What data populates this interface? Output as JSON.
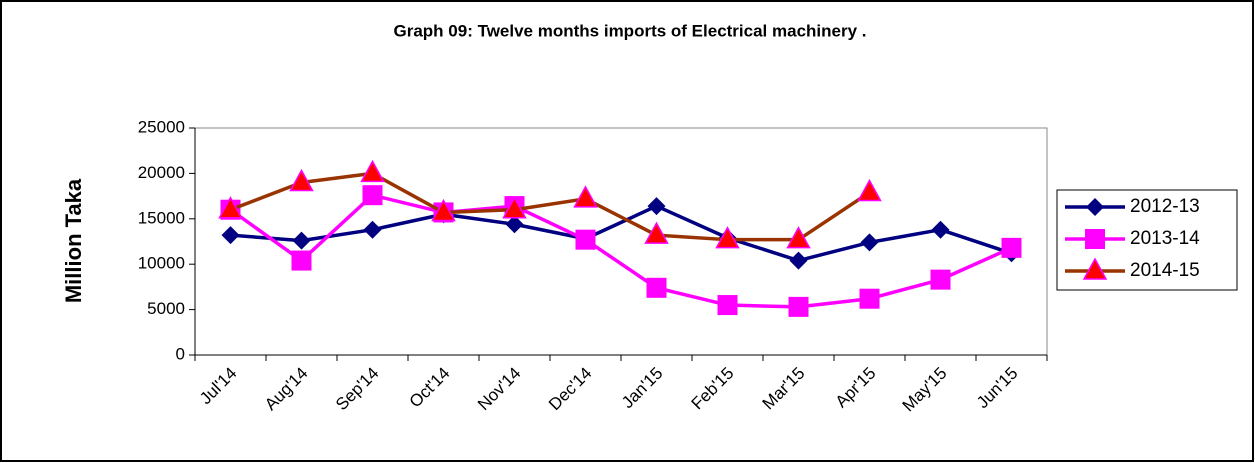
{
  "chart_data": {
    "type": "line",
    "title": "Graph 09: Twelve months imports of Electrical machinery .",
    "y_label": "Million Taka",
    "categories": [
      "Jul'14",
      "Aug'14",
      "Sep'14",
      "Oct'14",
      "Nov'14",
      "Dec'14",
      "Jan'15",
      "Feb'15",
      "Mar'15",
      "Apr'15",
      "May'15",
      "Jun'15"
    ],
    "series": [
      {
        "name": "2012-13",
        "color": "#000080",
        "marker": "diamond",
        "marker_color": "#000080",
        "values": [
          13200,
          12600,
          13800,
          15500,
          14400,
          12800,
          16400,
          12900,
          10400,
          12400,
          13800,
          11200
        ]
      },
      {
        "name": "2013-14",
        "color": "#ff00ff",
        "marker": "square",
        "marker_color": "#ff00ff",
        "values": [
          16000,
          10400,
          17600,
          15700,
          16400,
          12700,
          7400,
          5500,
          5300,
          6200,
          8300,
          11800
        ]
      },
      {
        "name": "2014-15",
        "color": "#993300",
        "marker": "triangle",
        "marker_color": "#ff0000",
        "values": [
          16000,
          19000,
          20000,
          15700,
          16000,
          17200,
          13200,
          12700,
          12700,
          17900,
          null,
          null
        ]
      }
    ],
    "ylim": [
      0,
      25000
    ],
    "yticks": [
      0,
      5000,
      10000,
      15000,
      20000,
      25000
    ],
    "grid": false,
    "legend": "right"
  }
}
